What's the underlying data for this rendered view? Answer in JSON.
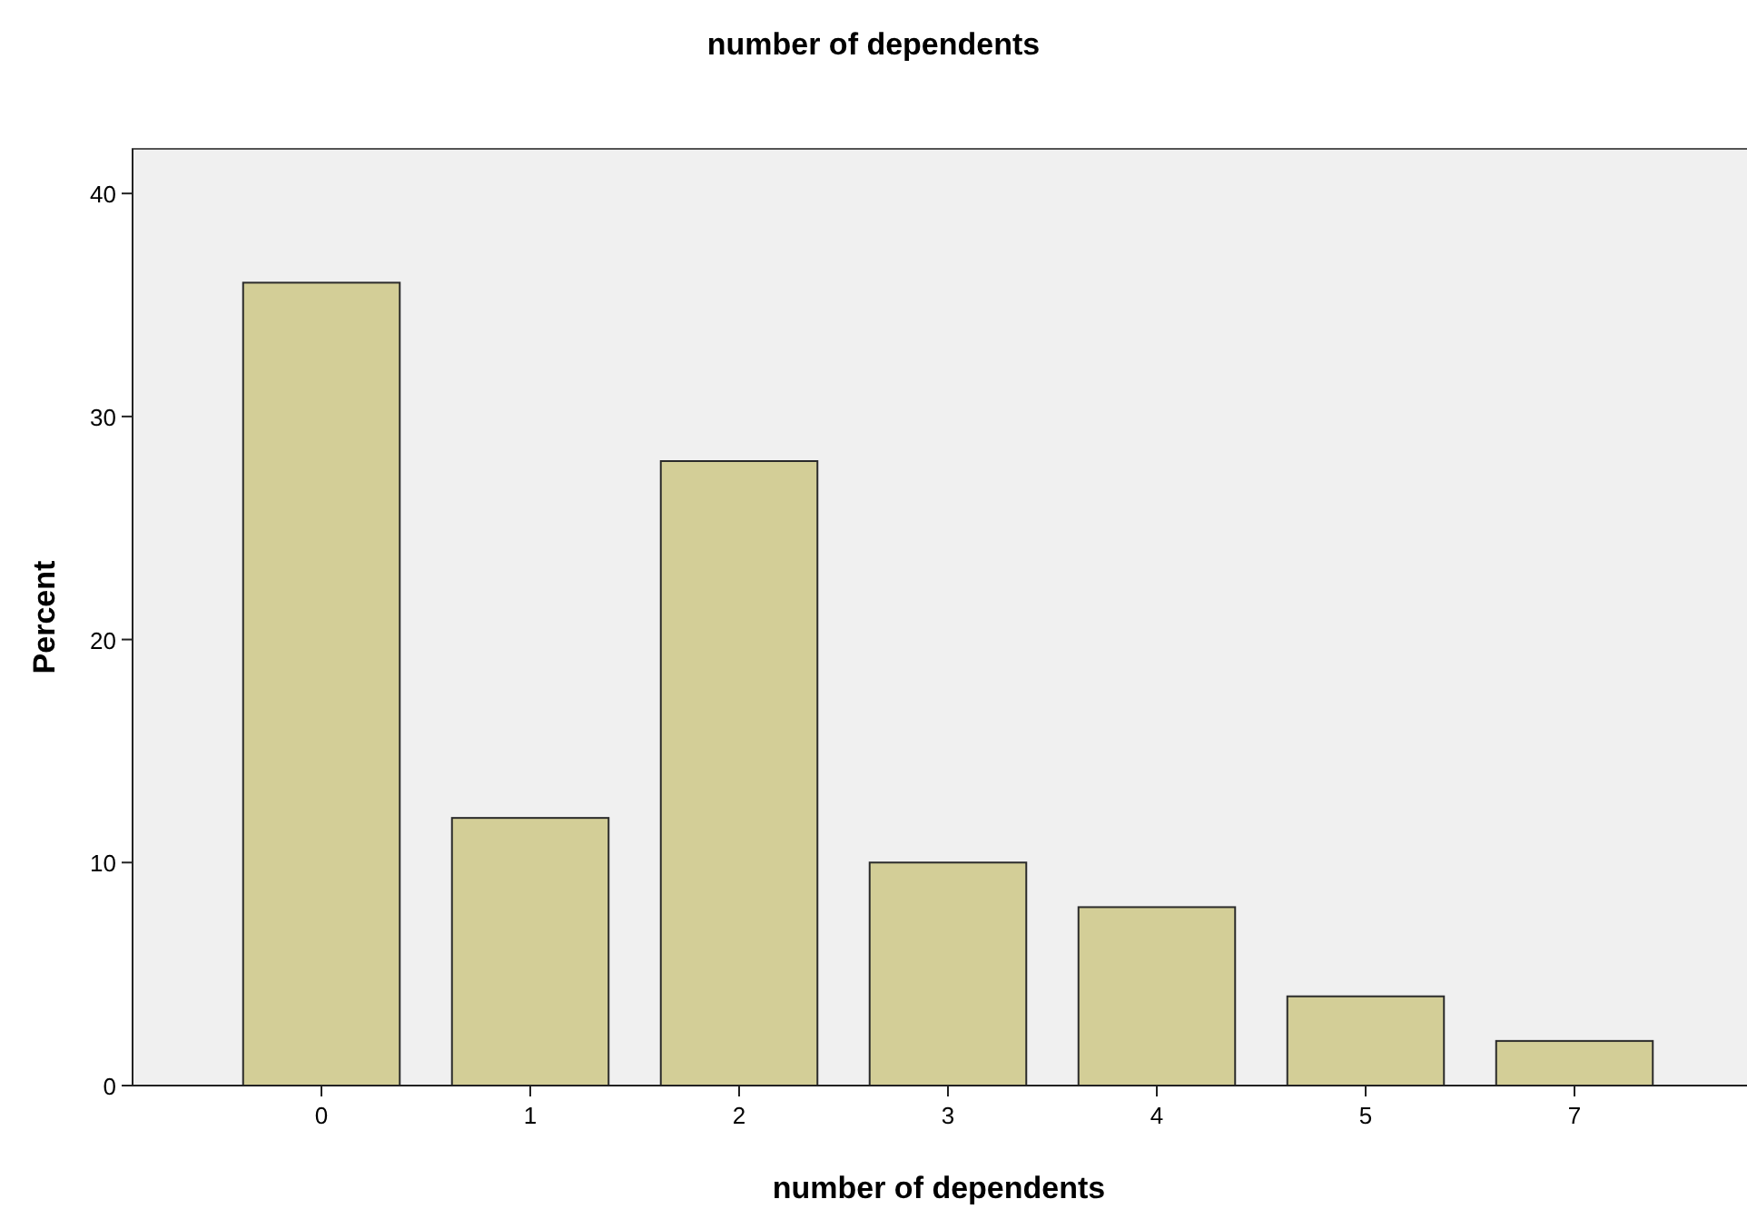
{
  "chart_data": {
    "type": "bar",
    "title": "number of dependents",
    "xlabel": "number of dependents",
    "ylabel": "Percent",
    "categories": [
      "0",
      "1",
      "2",
      "3",
      "4",
      "5",
      "7"
    ],
    "values": [
      36,
      12,
      28,
      10,
      8,
      4,
      2
    ],
    "color": "#d3ce97",
    "ylim": [
      0,
      42
    ],
    "yticks": [
      0,
      10,
      20,
      30,
      40
    ],
    "grid": false
  }
}
